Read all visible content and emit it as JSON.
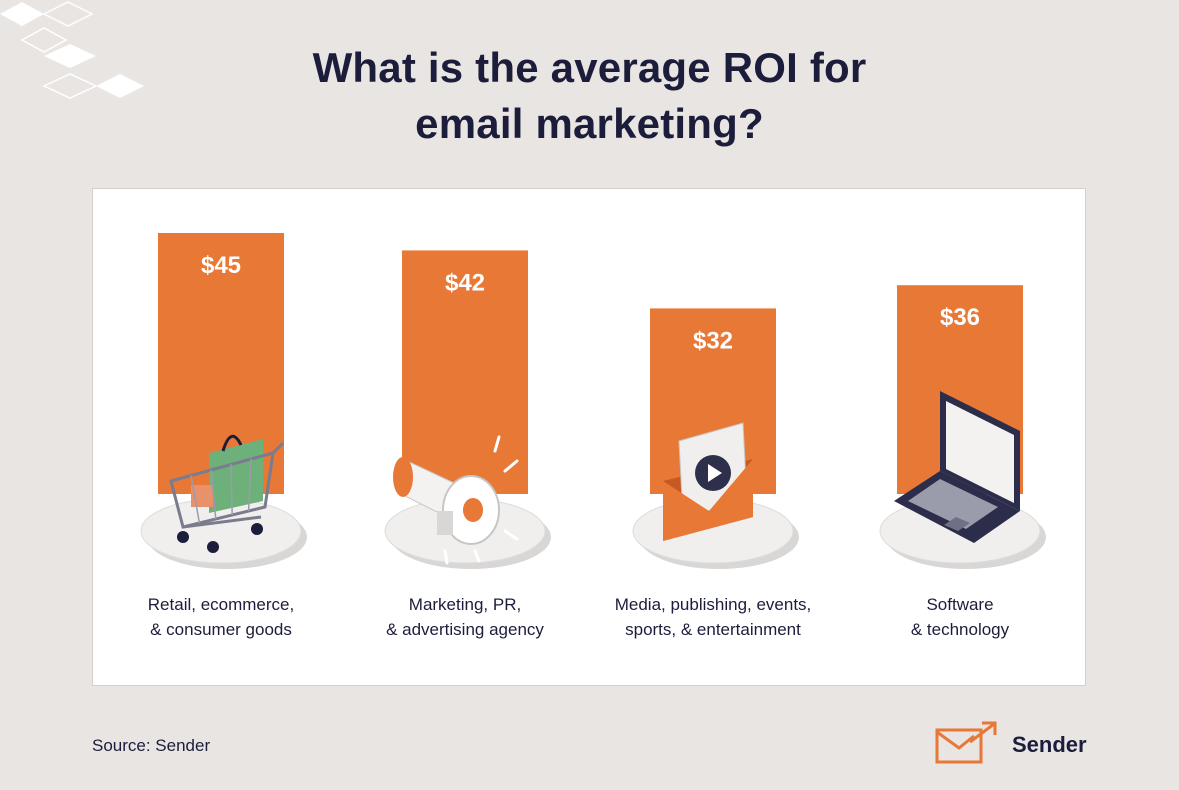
{
  "title_lines": [
    "What is the average ROI for",
    "email marketing?"
  ],
  "source": "Source: Sender",
  "logo_text": "Sender",
  "colors": {
    "background": "#E9E5E3",
    "panel": "#FFFFFF",
    "bar": "#E87836",
    "text": "#1C1D3B"
  },
  "chart_data": {
    "type": "bar",
    "categories": [
      "Retail, ecommerce, & consumer goods",
      "Marketing, PR, & advertising agency",
      "Media, publishing, events, sports, & entertainment",
      "Software & technology"
    ],
    "category_lines": [
      [
        "Retail, ecommerce,",
        "& consumer goods"
      ],
      [
        "Marketing, PR,",
        "& advertising agency"
      ],
      [
        "Media, publishing, events,",
        "sports, & entertainment"
      ],
      [
        "Software",
        "& technology"
      ]
    ],
    "values": [
      45,
      42,
      32,
      36
    ],
    "value_labels": [
      "$45",
      "$42",
      "$32",
      "$36"
    ],
    "icons": [
      "shopping-cart-icon",
      "megaphone-icon",
      "email-video-icon",
      "laptop-icon"
    ],
    "grid": false,
    "legend": "none"
  }
}
